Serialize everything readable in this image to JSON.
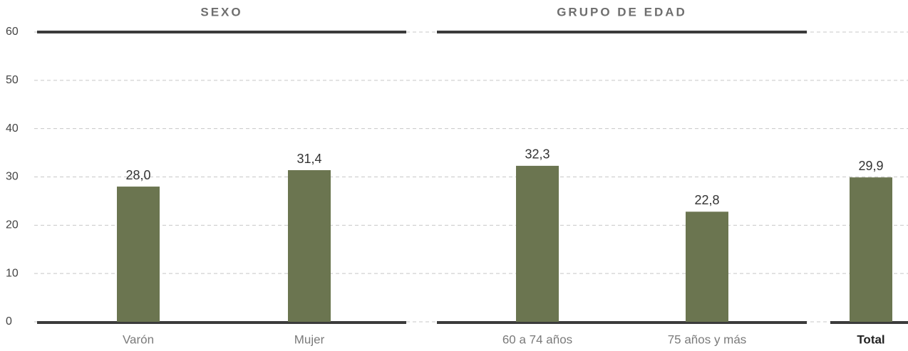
{
  "chart_data": {
    "type": "bar",
    "group_titles": [
      "SEXO",
      "GRUPO DE EDAD"
    ],
    "categories": [
      "Varón",
      "Mujer",
      "60 a 74 años",
      "75 años y más",
      "Total"
    ],
    "values": [
      28.0,
      31.4,
      32.3,
      22.8,
      29.9
    ],
    "value_labels": [
      "28,0",
      "31,4",
      "32,3",
      "22,8",
      "29,9"
    ],
    "color": "#6b7550",
    "ylim": [
      0,
      60
    ],
    "yticks": [
      0,
      10,
      20,
      30,
      40,
      50,
      60
    ],
    "grid": true
  }
}
